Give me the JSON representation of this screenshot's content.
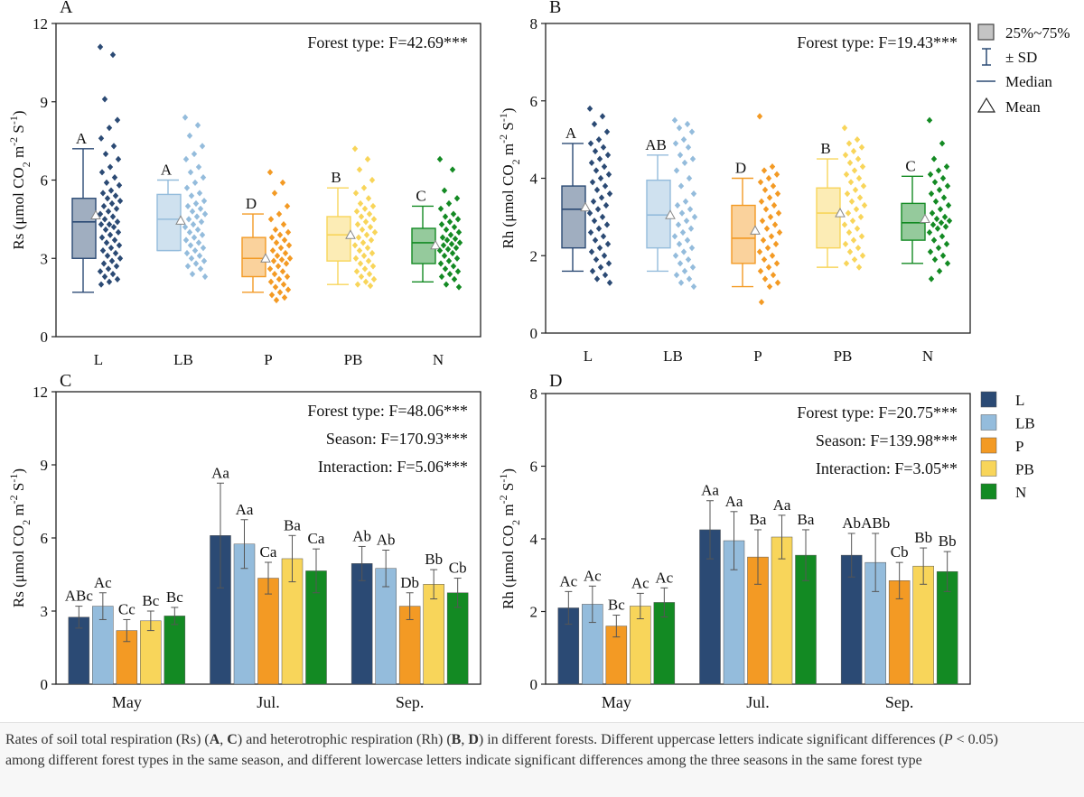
{
  "colors": {
    "L": "#2b4a74",
    "LB": "#94bcdc",
    "P": "#f39a24",
    "PB": "#f8d55a",
    "N": "#138a23"
  },
  "box_legend": {
    "box_label": "25%~75%",
    "sd_label": "± SD",
    "median_label": "Median",
    "mean_label": "Mean"
  },
  "bar_legend": [
    "L",
    "LB",
    "P",
    "PB",
    "N"
  ],
  "caption": {
    "lead": "Rates of soil total respiration (Rs) (",
    "A": "A",
    "comma1": ", ",
    "C": "C",
    "mid": ") and heterotrophic respiration (Rh) (",
    "B": "B",
    "comma2": ", ",
    "D": "D",
    "mid2": ") in different forests. Different uppercase letters indicate significant differences (",
    "P": "P",
    "tail": " < 0.05) among different forest types in the same season, and different lowercase letters indicate significant differences among the three seasons in the same forest type"
  },
  "chart_data": [
    {
      "id": "A",
      "panel_label": "A",
      "type": "box",
      "ylabel_prefix": "Rs (μmol CO",
      "ylim": [
        0,
        12
      ],
      "yticks": [
        0,
        3,
        6,
        9,
        12
      ],
      "categories": [
        "L",
        "LB",
        "P",
        "PB",
        "N"
      ],
      "annotations": [
        "Forest type: F=42.69***"
      ],
      "boxes": [
        {
          "q1": 3.0,
          "q3": 5.3,
          "median": 4.4,
          "mean": 4.65,
          "sd_low": 1.7,
          "sd_high": 7.2,
          "letter": "A"
        },
        {
          "q1": 3.3,
          "q3": 5.45,
          "median": 4.5,
          "mean": 4.45,
          "sd_low": 3.3,
          "sd_high": 6.0,
          "letter": "A"
        },
        {
          "q1": 2.3,
          "q3": 3.8,
          "median": 3.0,
          "mean": 3.0,
          "sd_low": 1.7,
          "sd_high": 4.7,
          "letter": "D"
        },
        {
          "q1": 2.9,
          "q3": 4.6,
          "median": 3.9,
          "mean": 3.9,
          "sd_low": 2.0,
          "sd_high": 5.7,
          "letter": "B"
        },
        {
          "q1": 2.8,
          "q3": 4.15,
          "median": 3.6,
          "mean": 3.5,
          "sd_low": 2.1,
          "sd_high": 5.0,
          "letter": "C"
        }
      ],
      "points": [
        [
          11.1,
          10.8,
          9.1,
          8.3,
          8.0,
          7.6,
          7.3,
          7.0,
          6.8,
          6.5,
          6.3,
          6.1,
          5.9,
          5.8,
          5.6,
          5.5,
          5.4,
          5.3,
          5.2,
          5.1,
          5.0,
          4.9,
          4.8,
          4.7,
          4.6,
          4.5,
          4.4,
          4.3,
          4.3,
          4.2,
          4.1,
          4.0,
          3.9,
          3.8,
          3.7,
          3.6,
          3.5,
          3.4,
          3.3,
          3.2,
          3.1,
          3.0,
          2.9,
          2.8,
          2.7,
          2.6,
          2.5,
          2.4,
          2.3,
          2.2,
          2.1,
          2.0
        ],
        [
          8.4,
          8.1,
          7.7,
          7.3,
          7.0,
          6.8,
          6.5,
          6.3,
          6.1,
          5.9,
          5.7,
          5.5,
          5.4,
          5.2,
          5.1,
          5.0,
          4.9,
          4.8,
          4.7,
          4.6,
          4.5,
          4.4,
          4.3,
          4.2,
          4.1,
          4.0,
          3.9,
          3.8,
          3.7,
          3.6,
          3.5,
          3.4,
          3.3,
          3.2,
          3.1,
          3.0,
          2.9,
          2.8,
          2.7,
          2.6,
          2.4,
          2.3
        ],
        [
          6.3,
          5.9,
          5.5,
          5.0,
          4.7,
          4.5,
          4.3,
          4.1,
          4.0,
          3.9,
          3.8,
          3.7,
          3.6,
          3.5,
          3.4,
          3.3,
          3.2,
          3.1,
          3.0,
          2.95,
          2.9,
          2.8,
          2.7,
          2.6,
          2.5,
          2.4,
          2.3,
          2.2,
          2.1,
          2.0,
          1.9,
          1.8,
          1.7,
          1.6,
          1.5,
          1.4
        ],
        [
          7.2,
          6.8,
          6.4,
          6.0,
          5.7,
          5.5,
          5.3,
          5.1,
          5.0,
          4.9,
          4.8,
          4.7,
          4.6,
          4.5,
          4.4,
          4.3,
          4.2,
          4.1,
          4.0,
          3.9,
          3.8,
          3.7,
          3.6,
          3.5,
          3.4,
          3.3,
          3.2,
          3.1,
          3.0,
          2.9,
          2.8,
          2.7,
          2.6,
          2.5,
          2.4,
          2.3,
          2.2,
          2.1,
          2.0,
          1.95
        ],
        [
          6.8,
          6.4,
          5.6,
          5.3,
          5.1,
          4.9,
          4.7,
          4.6,
          4.5,
          4.4,
          4.3,
          4.2,
          4.1,
          4.0,
          3.9,
          3.8,
          3.75,
          3.7,
          3.6,
          3.55,
          3.5,
          3.4,
          3.35,
          3.3,
          3.2,
          3.1,
          3.0,
          2.9,
          2.8,
          2.7,
          2.6,
          2.5,
          2.4,
          2.3,
          2.2,
          2.0,
          1.9
        ]
      ]
    },
    {
      "id": "B",
      "panel_label": "B",
      "type": "box",
      "ylabel_prefix": "Rh (μmol CO",
      "ylim": [
        0,
        8
      ],
      "yticks": [
        0,
        2,
        4,
        6,
        8
      ],
      "categories": [
        "L",
        "LB",
        "P",
        "PB",
        "N"
      ],
      "annotations": [
        "Forest type: F=19.43***"
      ],
      "boxes": [
        {
          "q1": 2.2,
          "q3": 3.8,
          "median": 3.2,
          "mean": 3.25,
          "sd_low": 1.6,
          "sd_high": 4.9,
          "letter": "A"
        },
        {
          "q1": 2.2,
          "q3": 3.95,
          "median": 3.05,
          "mean": 3.05,
          "sd_low": 1.6,
          "sd_high": 4.6,
          "letter": "AB"
        },
        {
          "q1": 1.8,
          "q3": 3.3,
          "median": 2.45,
          "mean": 2.65,
          "sd_low": 1.2,
          "sd_high": 4.0,
          "letter": "D"
        },
        {
          "q1": 2.2,
          "q3": 3.75,
          "median": 3.1,
          "mean": 3.1,
          "sd_low": 1.7,
          "sd_high": 4.5,
          "letter": "B"
        },
        {
          "q1": 2.4,
          "q3": 3.35,
          "median": 2.85,
          "mean": 2.95,
          "sd_low": 1.8,
          "sd_high": 4.05,
          "letter": "C"
        }
      ],
      "points": [
        [
          5.8,
          5.6,
          5.4,
          5.2,
          5.0,
          4.9,
          4.8,
          4.7,
          4.6,
          4.5,
          4.4,
          4.3,
          4.2,
          4.1,
          4.0,
          3.9,
          3.8,
          3.7,
          3.6,
          3.5,
          3.4,
          3.3,
          3.2,
          3.1,
          3.0,
          2.9,
          2.8,
          2.7,
          2.6,
          2.5,
          2.4,
          2.3,
          2.2,
          2.1,
          2.0,
          1.9,
          1.8,
          1.7,
          1.6,
          1.5,
          1.4,
          1.3
        ],
        [
          5.5,
          5.4,
          5.3,
          5.2,
          5.0,
          4.9,
          4.8,
          4.6,
          4.5,
          4.4,
          4.2,
          4.0,
          3.8,
          3.6,
          3.4,
          3.3,
          3.2,
          3.1,
          3.0,
          2.9,
          2.8,
          2.7,
          2.6,
          2.5,
          2.4,
          2.3,
          2.2,
          2.1,
          2.0,
          1.9,
          1.8,
          1.7,
          1.6,
          1.5,
          1.4,
          1.3,
          1.2
        ],
        [
          5.6,
          4.3,
          4.2,
          4.1,
          4.0,
          3.9,
          3.8,
          3.7,
          3.6,
          3.5,
          3.4,
          3.3,
          3.2,
          3.1,
          3.0,
          2.9,
          2.8,
          2.7,
          2.6,
          2.5,
          2.4,
          2.3,
          2.2,
          2.1,
          2.0,
          1.9,
          1.8,
          1.7,
          1.6,
          1.5,
          1.4,
          1.3,
          1.2,
          0.8
        ],
        [
          5.3,
          5.0,
          4.9,
          4.8,
          4.7,
          4.6,
          4.5,
          4.4,
          4.3,
          4.2,
          4.1,
          4.0,
          3.9,
          3.8,
          3.7,
          3.6,
          3.5,
          3.4,
          3.3,
          3.2,
          3.1,
          3.0,
          2.9,
          2.8,
          2.7,
          2.6,
          2.5,
          2.4,
          2.3,
          2.2,
          2.1,
          2.0,
          1.9,
          1.8,
          1.7
        ],
        [
          5.5,
          4.9,
          4.5,
          4.3,
          4.2,
          4.1,
          4.0,
          3.9,
          3.8,
          3.7,
          3.6,
          3.5,
          3.4,
          3.3,
          3.2,
          3.1,
          3.0,
          2.95,
          2.9,
          2.85,
          2.8,
          2.75,
          2.7,
          2.6,
          2.5,
          2.4,
          2.3,
          2.2,
          2.1,
          2.0,
          1.9,
          1.8,
          1.6,
          1.4
        ]
      ]
    },
    {
      "id": "C",
      "panel_label": "C",
      "type": "bar",
      "ylabel_prefix": "Rs (μmol CO",
      "ylim": [
        0,
        12
      ],
      "yticks": [
        0,
        3,
        6,
        9,
        12
      ],
      "categories": [
        "May",
        "Jul.",
        "Sep."
      ],
      "annotations": [
        "Forest type: F=48.06***",
        "Season: F=170.93***",
        "Interaction: F=5.06***"
      ],
      "series": [
        {
          "name": "L",
          "values": [
            2.75,
            6.1,
            4.95
          ],
          "sd": [
            0.45,
            2.15,
            0.7
          ],
          "letters": [
            "ABc",
            "Aa",
            "Ab"
          ]
        },
        {
          "name": "LB",
          "values": [
            3.2,
            5.75,
            4.75
          ],
          "sd": [
            0.55,
            1.0,
            0.75
          ],
          "letters": [
            "Ac",
            "Aa",
            "Ab"
          ]
        },
        {
          "name": "P",
          "values": [
            2.2,
            4.35,
            3.2
          ],
          "sd": [
            0.45,
            0.65,
            0.55
          ],
          "letters": [
            "Cc",
            "Ca",
            "Db"
          ]
        },
        {
          "name": "PB",
          "values": [
            2.6,
            5.15,
            4.1
          ],
          "sd": [
            0.4,
            0.95,
            0.6
          ],
          "letters": [
            "Bc",
            "Ba",
            "Bb"
          ]
        },
        {
          "name": "N",
          "values": [
            2.8,
            4.65,
            3.75
          ],
          "sd": [
            0.35,
            0.9,
            0.6
          ],
          "letters": [
            "Bc",
            "Ca",
            "Cb"
          ]
        }
      ]
    },
    {
      "id": "D",
      "panel_label": "D",
      "type": "bar",
      "ylabel_prefix": "Rh (μmol CO",
      "ylim": [
        0,
        8
      ],
      "yticks": [
        0,
        2,
        4,
        6,
        8
      ],
      "categories": [
        "May",
        "Jul.",
        "Sep."
      ],
      "annotations": [
        "Forest type: F=20.75***",
        "Season: F=139.98***",
        "Interaction: F=3.05**"
      ],
      "series": [
        {
          "name": "L",
          "values": [
            2.1,
            4.25,
            3.55
          ],
          "sd": [
            0.45,
            0.8,
            0.6
          ],
          "letters": [
            "Ac",
            "Aa",
            "Ab"
          ]
        },
        {
          "name": "LB",
          "values": [
            2.2,
            3.95,
            3.35
          ],
          "sd": [
            0.5,
            0.8,
            0.8
          ],
          "letters": [
            "Ac",
            "Aa",
            "ABb"
          ]
        },
        {
          "name": "P",
          "values": [
            1.6,
            3.5,
            2.85
          ],
          "sd": [
            0.3,
            0.75,
            0.5
          ],
          "letters": [
            "Bc",
            "Ba",
            "Cb"
          ]
        },
        {
          "name": "PB",
          "values": [
            2.15,
            4.05,
            3.25
          ],
          "sd": [
            0.35,
            0.6,
            0.5
          ],
          "letters": [
            "Ac",
            "Aa",
            "Bb"
          ]
        },
        {
          "name": "N",
          "values": [
            2.25,
            3.55,
            3.1
          ],
          "sd": [
            0.4,
            0.7,
            0.55
          ],
          "letters": [
            "Ac",
            "Ba",
            "Bb"
          ]
        }
      ]
    }
  ]
}
